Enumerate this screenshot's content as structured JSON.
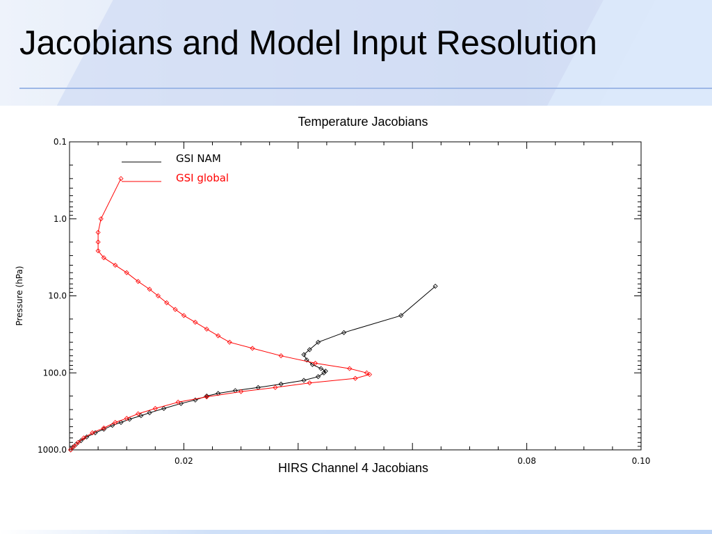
{
  "slide": {
    "title": "Jacobians and Model Input Resolution",
    "chart_title": "Temperature Jacobians",
    "chart_caption": "HIRS Channel 4 Jacobians"
  },
  "colors": {
    "gsi_nam": "#000000",
    "gsi_global": "#ff0000",
    "title_rule": "#9db7e6"
  },
  "chart_data": {
    "type": "line",
    "ylabel": "Pressure (hPa)",
    "xlabel": "",
    "xlim": [
      0.0,
      0.1
    ],
    "ylim": [
      1000.0,
      0.1
    ],
    "yscale": "log",
    "y_reversed": true,
    "x_tick_labels": [
      "0.02",
      "0.08",
      "0.10"
    ],
    "x_ticks": [
      0.02,
      0.08,
      0.1
    ],
    "y_tick_labels": [
      "0.1",
      "1.0",
      "10.0",
      "100.0",
      "1000.0"
    ],
    "y_ticks": [
      0.1,
      1.0,
      10.0,
      100.0,
      1000.0
    ],
    "legend_position": "top-left",
    "markers": "diamond",
    "series": [
      {
        "name": "GSI NAM",
        "color": "#000000",
        "points": [
          [
            0.064,
            7.5
          ],
          [
            0.058,
            18.0
          ],
          [
            0.048,
            30.0
          ],
          [
            0.0435,
            40.0
          ],
          [
            0.042,
            50.0
          ],
          [
            0.041,
            58.0
          ],
          [
            0.0415,
            68.0
          ],
          [
            0.0425,
            78.0
          ],
          [
            0.044,
            88.0
          ],
          [
            0.0448,
            95.0
          ],
          [
            0.0445,
            100.0
          ],
          [
            0.0435,
            112.0
          ],
          [
            0.041,
            125.0
          ],
          [
            0.037,
            140.0
          ],
          [
            0.033,
            155.0
          ],
          [
            0.029,
            170.0
          ],
          [
            0.026,
            185.0
          ],
          [
            0.024,
            200.0
          ],
          [
            0.022,
            225.0
          ],
          [
            0.0195,
            250.0
          ],
          [
            0.0165,
            290.0
          ],
          [
            0.014,
            330.0
          ],
          [
            0.0125,
            360.0
          ],
          [
            0.0105,
            400.0
          ],
          [
            0.009,
            440.0
          ],
          [
            0.0075,
            480.0
          ],
          [
            0.006,
            540.0
          ],
          [
            0.0045,
            600.0
          ],
          [
            0.003,
            680.0
          ],
          [
            0.002,
            760.0
          ],
          [
            0.0012,
            840.0
          ],
          [
            0.0006,
            920.0
          ],
          [
            0.0002,
            1000.0
          ]
        ]
      },
      {
        "name": "GSI global",
        "color": "#ff0000",
        "points": [
          [
            0.009,
            0.3
          ],
          [
            0.0055,
            1.0
          ],
          [
            0.005,
            1.5
          ],
          [
            0.005,
            2.0
          ],
          [
            0.005,
            2.6
          ],
          [
            0.006,
            3.2
          ],
          [
            0.008,
            4.0
          ],
          [
            0.01,
            5.0
          ],
          [
            0.012,
            6.5
          ],
          [
            0.014,
            8.2
          ],
          [
            0.0155,
            10.0
          ],
          [
            0.017,
            12.3
          ],
          [
            0.0185,
            15.0
          ],
          [
            0.02,
            18.0
          ],
          [
            0.022,
            22.0
          ],
          [
            0.024,
            27.0
          ],
          [
            0.026,
            33.0
          ],
          [
            0.028,
            40.0
          ],
          [
            0.032,
            48.0
          ],
          [
            0.037,
            60.0
          ],
          [
            0.043,
            75.0
          ],
          [
            0.049,
            88.0
          ],
          [
            0.052,
            100.0
          ],
          [
            0.0525,
            105.0
          ],
          [
            0.05,
            118.0
          ],
          [
            0.042,
            135.0
          ],
          [
            0.036,
            155.0
          ],
          [
            0.03,
            175.0
          ],
          [
            0.024,
            205.0
          ],
          [
            0.019,
            240.0
          ],
          [
            0.015,
            290.0
          ],
          [
            0.012,
            340.0
          ],
          [
            0.01,
            390.0
          ],
          [
            0.008,
            440.0
          ],
          [
            0.006,
            520.0
          ],
          [
            0.004,
            600.0
          ],
          [
            0.0025,
            700.0
          ],
          [
            0.0015,
            800.0
          ],
          [
            0.0008,
            900.0
          ],
          [
            0.0002,
            1000.0
          ]
        ]
      }
    ]
  }
}
